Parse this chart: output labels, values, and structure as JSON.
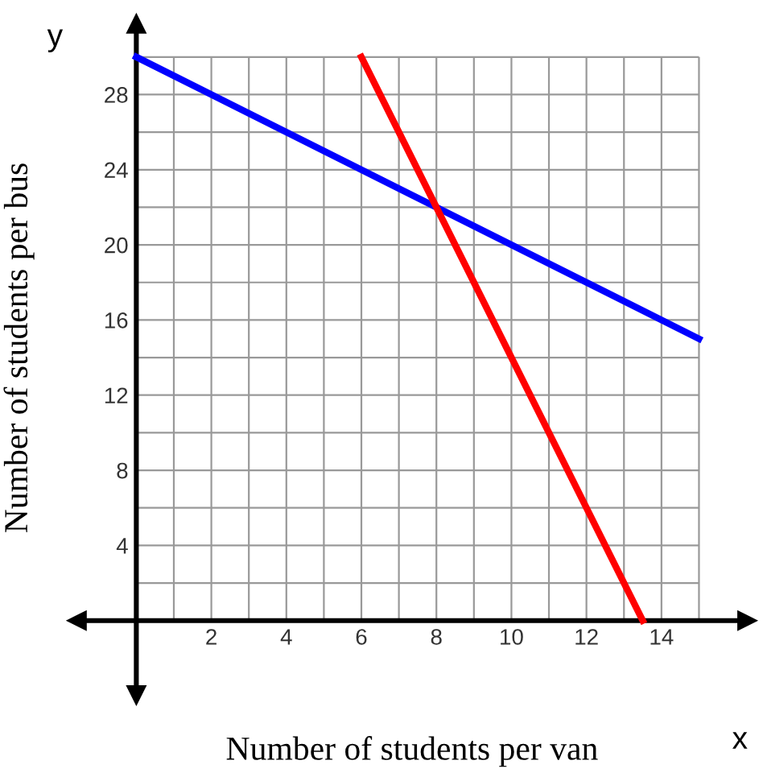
{
  "chart_data": {
    "type": "line",
    "xlabel": "Number of students per van",
    "ylabel": "Number of students per bus",
    "annotations": [
      "x",
      "y"
    ],
    "series": [
      {
        "color": "#0000ff",
        "x": [
          0,
          15
        ],
        "values": [
          30,
          15
        ]
      },
      {
        "color": "#ff0000",
        "x": [
          6,
          13.5
        ],
        "values": [
          30,
          0
        ]
      }
    ],
    "xlim": [
      -1.6,
      16.3
    ],
    "ylim": [
      -4,
      31.8
    ],
    "xticks": [
      {
        "value": 0,
        "label": null
      },
      {
        "value": 1,
        "label": null
      },
      2,
      {
        "value": 3,
        "label": null
      },
      4,
      {
        "value": 5,
        "label": null
      },
      6,
      {
        "value": 7,
        "label": null
      },
      8,
      {
        "value": 9,
        "label": null
      },
      10,
      {
        "value": 11,
        "label": null
      },
      12,
      {
        "value": 13,
        "label": null
      },
      14,
      {
        "value": 15,
        "label": null
      }
    ],
    "yticks": [
      {
        "value": 0,
        "label": null
      },
      {
        "value": 2,
        "label": null
      },
      4,
      {
        "value": 6,
        "label": null
      },
      8,
      {
        "value": 10,
        "label": null
      },
      12,
      {
        "value": 14,
        "label": null
      },
      16,
      {
        "value": 18,
        "label": null
      },
      20,
      {
        "value": 22,
        "label": null
      },
      24,
      {
        "value": 26,
        "label": null
      },
      28,
      {
        "value": 30,
        "label": null
      }
    ],
    "grid": true,
    "line_style": "solid",
    "marker": "none"
  }
}
